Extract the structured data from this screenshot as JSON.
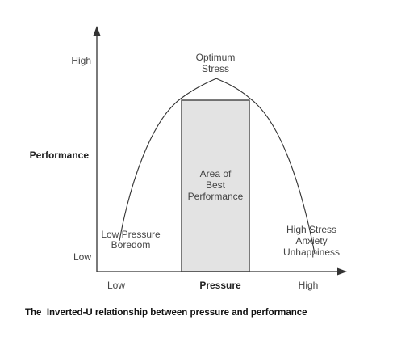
{
  "caption": "The  Inverted-U relationship between pressure and performance",
  "y_axis": {
    "title": "Performance",
    "high_label": "High",
    "low_label": "Low"
  },
  "x_axis": {
    "title": "Pressure",
    "low_label": "Low",
    "high_label": "High"
  },
  "peak_label": {
    "line1": "Optimum",
    "line2": "Stress"
  },
  "zone": {
    "line1": "Area of",
    "line2": "Best",
    "line3": "Performance",
    "fill_color": "#e3e3e3"
  },
  "left_region": {
    "line1": "Low Pressure",
    "line2": "Boredom"
  },
  "right_region": {
    "line1": "High Stress",
    "line2": "Anxiety",
    "line3": "Unhappiness"
  }
}
